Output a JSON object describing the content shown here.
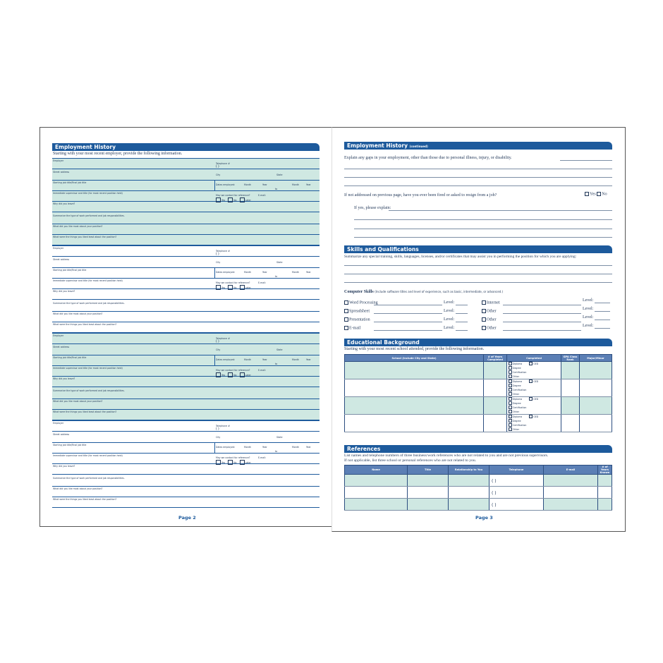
{
  "page2": {
    "section_title": "Employment History",
    "intro": "Starting with your most recent employer, provide the following information.",
    "employer_fields": {
      "employer": "Employer",
      "telephone": "Telephone #",
      "phone_parens": "(          )",
      "street": "Street address",
      "city": "City",
      "state": "State",
      "job_title": "Starting job title/Final job title",
      "dates": "Dates employed:",
      "month": "Month",
      "year": "Year",
      "to": "to",
      "supervisor": "Immediate supervisor and title (for most recent position held)",
      "contact": "May we contact for reference?",
      "email": "E-mail:",
      "yes": "Yes",
      "no": "No",
      "later": "Later",
      "why_leave": "Why did you leave?",
      "summarize": "Summarize the type of work performed and job responsibilities.",
      "liked_most": "What did you like most about your position?",
      "liked_least": "What were the things you liked least about the position?"
    },
    "employer_blocks": 4,
    "page_label": "Page 2"
  },
  "page3": {
    "employment_continued": {
      "title": "Employment History",
      "title_suffix": "(continued)",
      "gaps": "Explain any gaps in your employment, other than those due to personal illness, injury, or disability.",
      "fired": "If not addressed on previous page, have you ever been fired or asked to resign from a job?",
      "yes": "Yes",
      "no": "No",
      "if_yes": "If yes, please explain:"
    },
    "skills": {
      "title": "Skills and Qualifications",
      "summarize": "Summarize any special training, skills, languages, licenses, and/or certificates that may assist you in performing the position for which you are applying:",
      "computer_label": "Computer Skills",
      "computer_note": "(Include software titles and level of experience, such as basic, intermediate, or advanced.)",
      "level": "Level:",
      "left_items": [
        "Word Processing",
        "Spreadsheet",
        "Presentation",
        "E-mail"
      ],
      "right_items": [
        "Internet",
        "Other",
        "Other",
        "Other"
      ]
    },
    "education": {
      "title": "Educational Background",
      "intro": "Starting with your most recent school attended, provide the following information.",
      "headers": [
        "School (Include City and State)",
        "# of Years Completed",
        "Completed",
        "GPA Class Rank",
        "Major/Minor"
      ],
      "options": [
        "Diploma",
        "GED",
        "Degree",
        "Certification",
        "Other"
      ]
    },
    "references": {
      "title": "References",
      "intro1": "List names and telephone numbers of three business/work references who are not related to you and are not previous supervisors.",
      "intro2": "If not applicable, list three school or personal references who are not related to you.",
      "headers": [
        "Name",
        "Title",
        "Relationship to You",
        "Telephone",
        "E-mail",
        "# of Years Known"
      ],
      "phone_parens": "(          )"
    },
    "page_label": "Page 3"
  },
  "colors": {
    "header_blue": "#1d5a9c",
    "table_header": "#5b7fb5",
    "shade": "#cfe8e2"
  }
}
